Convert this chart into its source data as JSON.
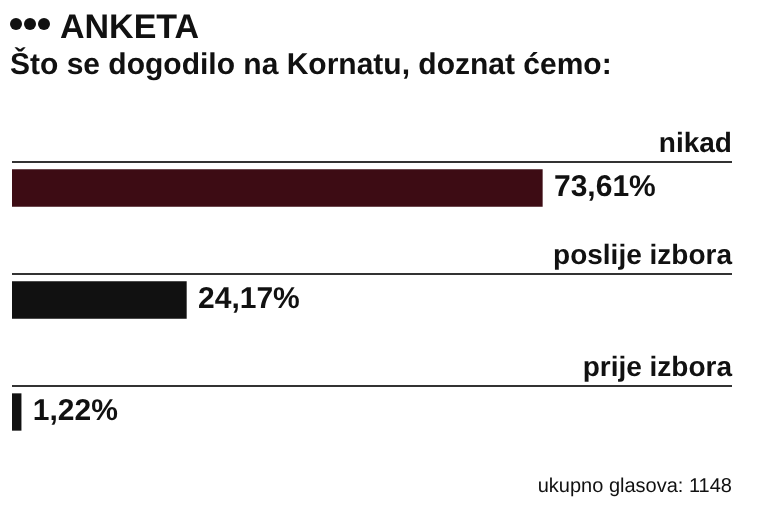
{
  "chart_data": {
    "type": "bar",
    "orientation": "horizontal",
    "title": "ANKETA",
    "subtitle": "Što se dogodilo na Kornatu, doznat ćemo:",
    "categories": [
      "nikad",
      "poslije izbora",
      "prije izbora"
    ],
    "values": [
      73.61,
      24.17,
      1.22
    ],
    "colors": [
      "#3d0c14",
      "#111111",
      "#111111"
    ],
    "value_labels": [
      "73,61%",
      "24,17%",
      "1,22%"
    ],
    "xlim": [
      0,
      100
    ],
    "tick_labels": false,
    "annotations": [
      "ukupno glasova: 1148"
    ]
  }
}
